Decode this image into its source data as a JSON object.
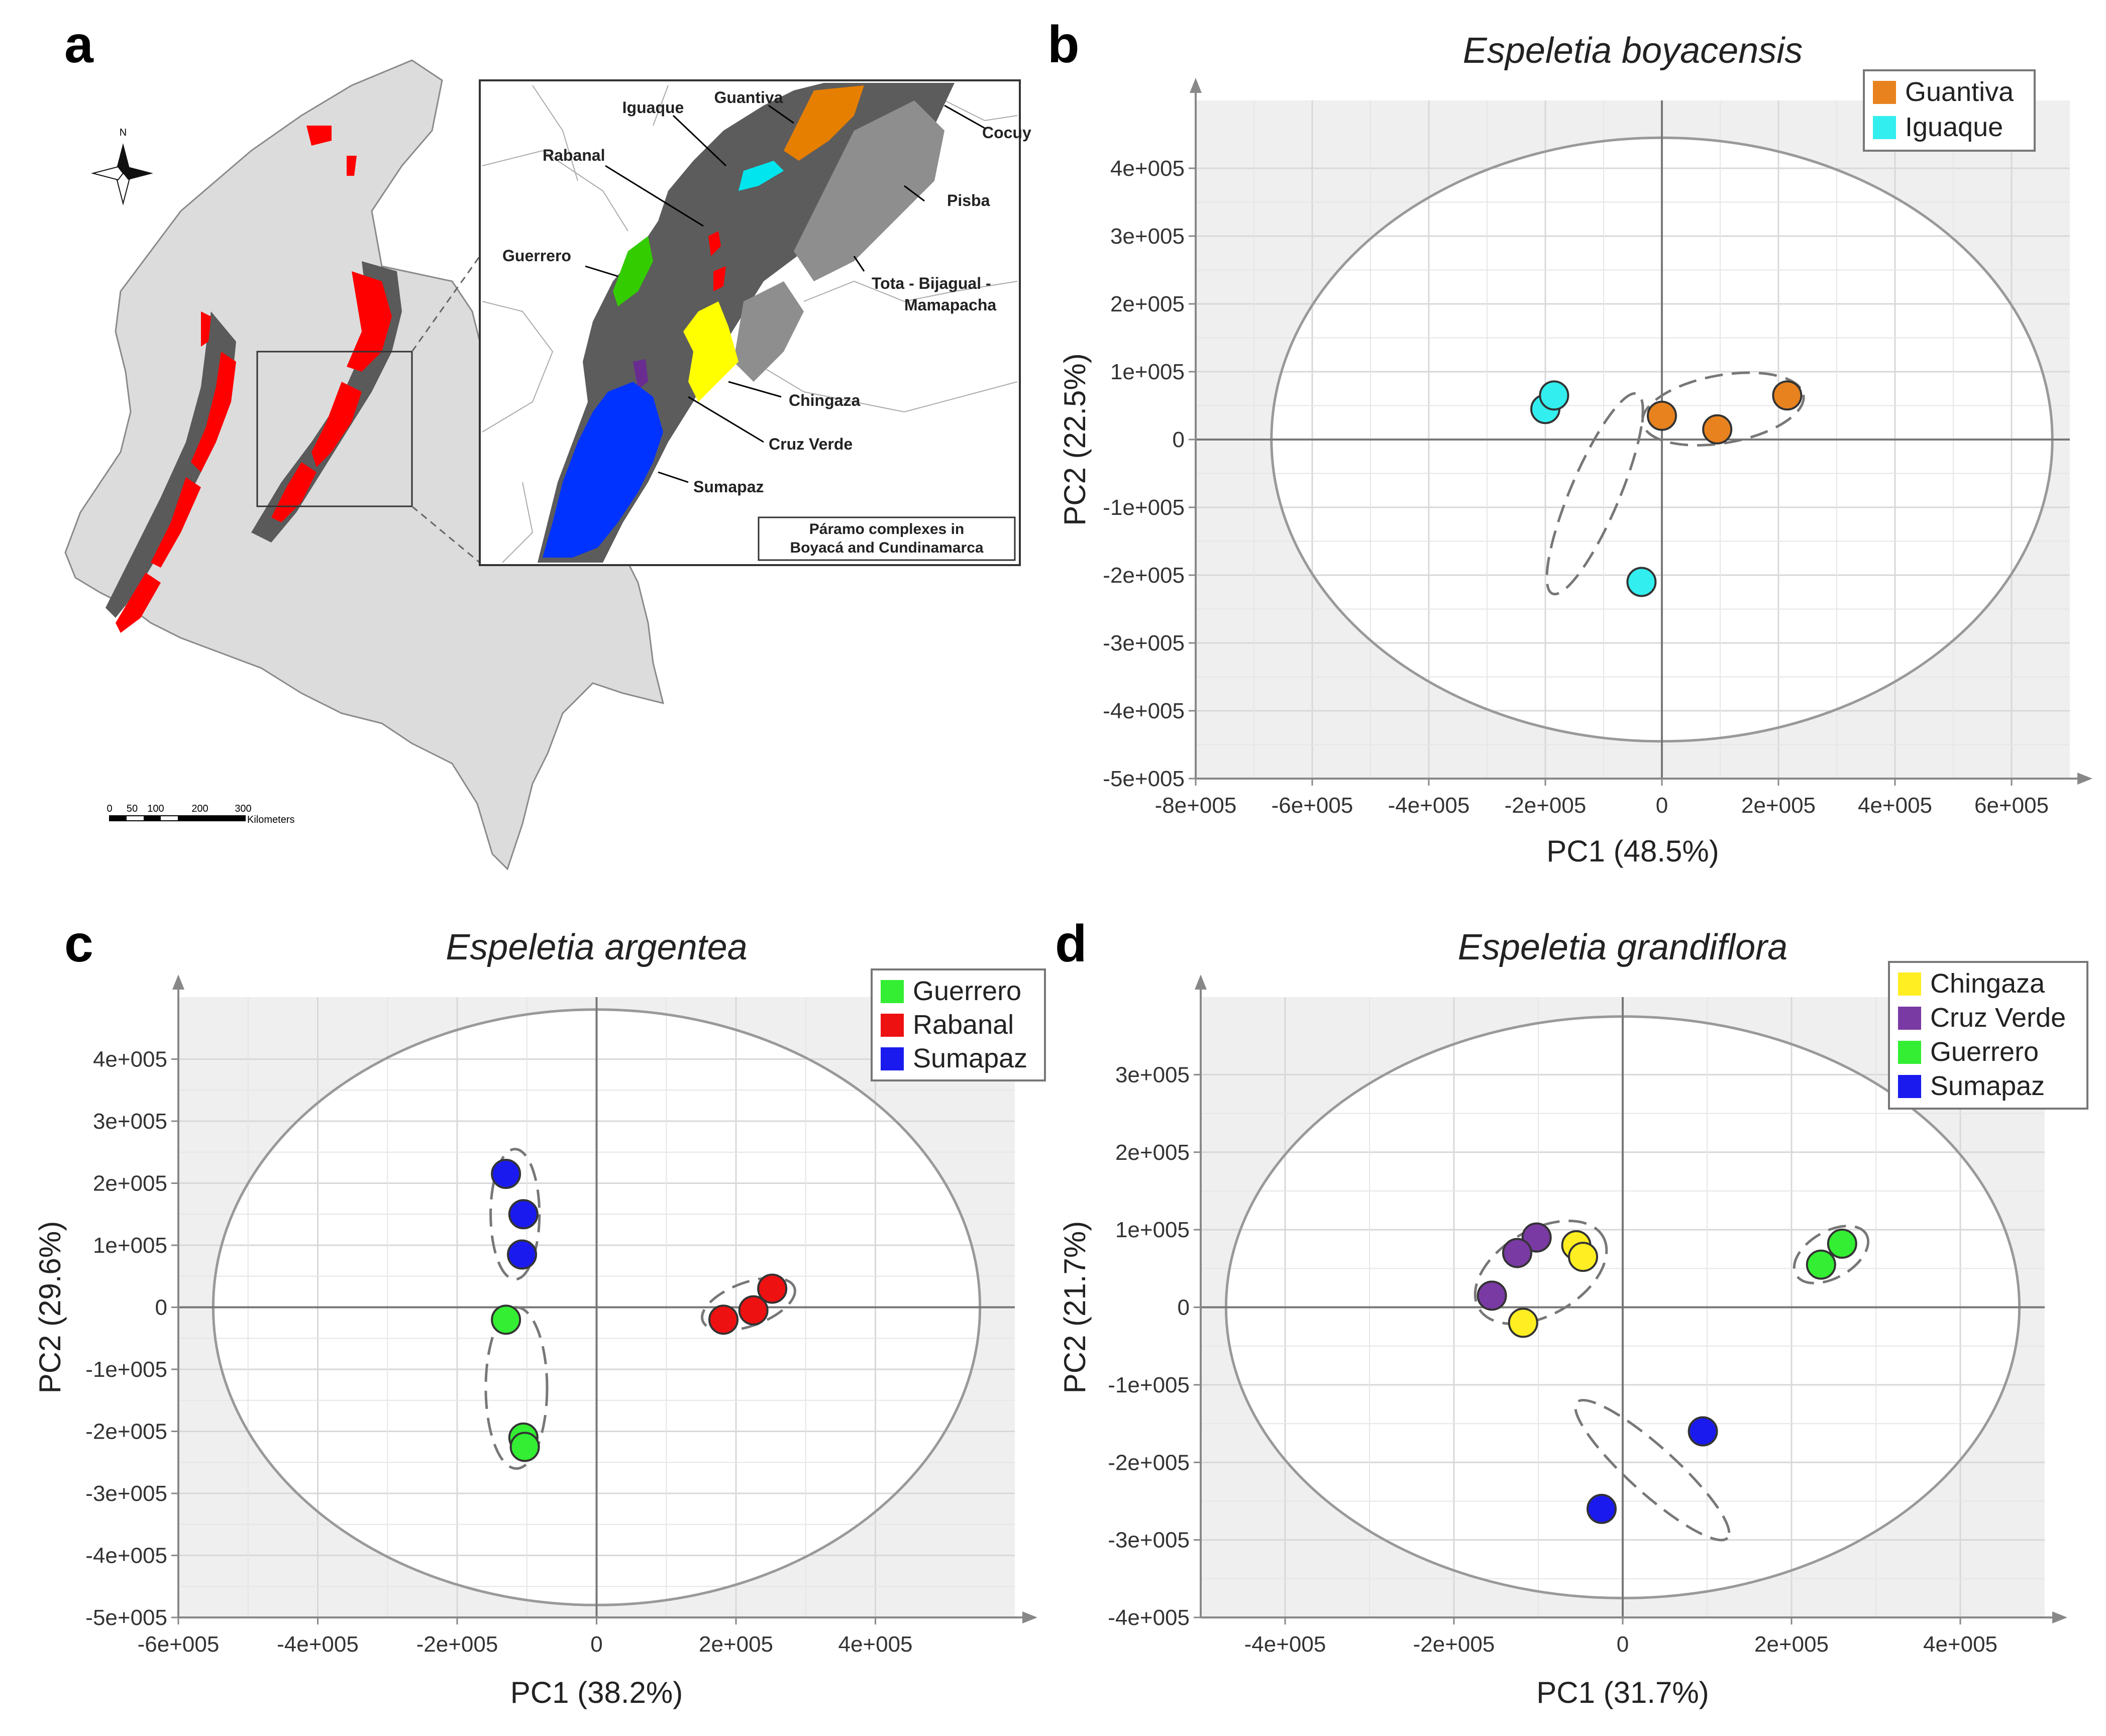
{
  "panel_letters": {
    "a": "a",
    "b": "b",
    "c": "c",
    "d": "d"
  },
  "map": {
    "north_label": "N",
    "inset_title_line1": "Páramo complexes in",
    "inset_title_line2": "Boyacá and Cundinamarca",
    "scale_ticks": [
      "0",
      "50",
      "100",
      "200",
      "300"
    ],
    "scale_unit": "Kilometers",
    "labels": {
      "iguaque": "Iguaque",
      "guantiva": "Guantiva",
      "cocuy": "Cocuy",
      "rabanal": "Rabanal",
      "pisba": "Pisba",
      "guerrero": "Guerrero",
      "tota_line1": "Tota - Bijagual -",
      "tota_line2": "Mamapacha",
      "chingaza": "Chingaza",
      "cruzverde": "Cruz Verde",
      "sumapaz": "Sumapaz"
    },
    "colors": {
      "paramo_red": "#ff0000",
      "iguaque": "#00e5ee",
      "guantiva": "#e67e00",
      "rabanal": "#ff0000",
      "guerrero": "#33cc00",
      "chingaza": "#ffff00",
      "cruzverde": "#6a2c91",
      "sumapaz": "#0033ff"
    }
  },
  "chart_data": [
    {
      "id": "b",
      "type": "scatter",
      "title": "Espeletia boyacensis",
      "xlabel": "PC1 (48.5%)",
      "ylabel": "PC2 (22.5%)",
      "xlim": [
        -800000,
        700000
      ],
      "ylim": [
        -500000,
        500000
      ],
      "xticks": [
        -800000,
        -600000,
        -400000,
        -200000,
        0,
        200000,
        400000,
        600000
      ],
      "xtick_labels": [
        "-8e+005",
        "-6e+005",
        "-4e+005",
        "-2e+005",
        "0",
        "2e+005",
        "4e+005",
        "6e+005"
      ],
      "yticks": [
        -500000,
        -400000,
        -300000,
        -200000,
        -100000,
        0,
        100000,
        200000,
        300000,
        400000
      ],
      "ytick_labels": [
        "-5e+005",
        "-4e+005",
        "-3e+005",
        "-2e+005",
        "-1e+005",
        "0",
        "1e+005",
        "2e+005",
        "3e+005",
        "4e+005"
      ],
      "ellipse_radius": [
        670000,
        445000
      ],
      "legend": "top-right",
      "series": [
        {
          "name": "Guantiva",
          "color": "#e8821e",
          "points": [
            [
              0,
              35000
            ],
            [
              95000,
              15000
            ],
            [
              215000,
              65000
            ]
          ]
        },
        {
          "name": "Iguaque",
          "color": "#33eeee",
          "points": [
            [
              -200000,
              45000
            ],
            [
              -185000,
              65000
            ],
            [
              -35000,
              -210000
            ]
          ]
        }
      ],
      "groups": [
        {
          "center": [
            105000,
            45000
          ],
          "radii": [
            140000,
            50000
          ],
          "angle": 10
        },
        {
          "center": [
            -115000,
            -80000
          ],
          "radii": [
            42000,
            160000
          ],
          "angle": -23
        }
      ]
    },
    {
      "id": "c",
      "type": "scatter",
      "title": "Espeletia argentea",
      "xlabel": "PC1 (38.2%)",
      "ylabel": "PC2 (29.6%)",
      "xlim": [
        -600000,
        600000
      ],
      "ylim": [
        -500000,
        500000
      ],
      "xticks": [
        -600000,
        -400000,
        -200000,
        0,
        200000,
        400000
      ],
      "xtick_labels": [
        "-6e+005",
        "-4e+005",
        "-2e+005",
        "0",
        "2e+005",
        "4e+005"
      ],
      "yticks": [
        -500000,
        -400000,
        -300000,
        -200000,
        -100000,
        0,
        100000,
        200000,
        300000,
        400000
      ],
      "ytick_labels": [
        "-5e+005",
        "-4e+005",
        "-3e+005",
        "-2e+005",
        "-1e+005",
        "0",
        "1e+005",
        "2e+005",
        "3e+005",
        "4e+005"
      ],
      "ellipse_radius": [
        550000,
        480000
      ],
      "legend": "top-right",
      "series": [
        {
          "name": "Guerrero",
          "color": "#33ee33",
          "points": [
            [
              -130000,
              -20000
            ],
            [
              -105000,
              -210000
            ],
            [
              -103000,
              -225000
            ]
          ]
        },
        {
          "name": "Rabanal",
          "color": "#ee1111",
          "points": [
            [
              182000,
              -20000
            ],
            [
              225000,
              -5000
            ],
            [
              252000,
              30000
            ]
          ]
        },
        {
          "name": "Sumapaz",
          "color": "#1a1aee",
          "points": [
            [
              -130000,
              215000
            ],
            [
              -105000,
              150000
            ],
            [
              -107000,
              85000
            ]
          ]
        }
      ],
      "groups": [
        {
          "center": [
            -117000,
            150000
          ],
          "radii": [
            35000,
            105000
          ],
          "angle": 0
        },
        {
          "center": [
            -115000,
            -130000
          ],
          "radii": [
            44000,
            130000
          ],
          "angle": 0
        },
        {
          "center": [
            218000,
            5000
          ],
          "radii": [
            70000,
            35000
          ],
          "angle": 20
        }
      ]
    },
    {
      "id": "d",
      "type": "scatter",
      "title": "Espeletia grandiflora",
      "xlabel": "PC1 (31.7%)",
      "ylabel": "PC2 (21.7%)",
      "xlim": [
        -500000,
        500000
      ],
      "ylim": [
        -400000,
        400000
      ],
      "xticks": [
        -400000,
        -200000,
        0,
        200000,
        400000
      ],
      "xtick_labels": [
        "-4e+005",
        "-2e+005",
        "0",
        "2e+005",
        "4e+005"
      ],
      "yticks": [
        -400000,
        -300000,
        -200000,
        -100000,
        0,
        100000,
        200000,
        300000
      ],
      "ytick_labels": [
        "-4e+005",
        "-3e+005",
        "-2e+005",
        "-1e+005",
        "0",
        "1e+005",
        "2e+005",
        "3e+005"
      ],
      "ellipse_radius": [
        470000,
        375000
      ],
      "legend": "top-right",
      "series": [
        {
          "name": "Chingaza",
          "color": "#ffee22",
          "points": [
            [
              -55000,
              80000
            ],
            [
              -47000,
              65000
            ],
            [
              -118000,
              -20000
            ]
          ]
        },
        {
          "name": "Cruz Verde",
          "color": "#7a3aa3",
          "points": [
            [
              -102000,
              90000
            ],
            [
              -125000,
              70000
            ],
            [
              -155000,
              15000
            ]
          ]
        },
        {
          "name": "Guerrero",
          "color": "#33ee33",
          "points": [
            [
              235000,
              55000
            ],
            [
              260000,
              82000
            ]
          ]
        },
        {
          "name": "Sumapaz",
          "color": "#1a1aee",
          "points": [
            [
              95000,
              -160000
            ],
            [
              -25000,
              -260000
            ]
          ]
        }
      ],
      "groups": [
        {
          "center": [
            -97000,
            45000
          ],
          "radii": [
            85000,
            55000
          ],
          "angle": 30
        },
        {
          "center": [
            247000,
            68000
          ],
          "radii": [
            48000,
            30000
          ],
          "angle": 30
        },
        {
          "center": [
            35000,
            -210000
          ],
          "radii": [
            120000,
            30000
          ],
          "angle": -42
        }
      ]
    }
  ]
}
